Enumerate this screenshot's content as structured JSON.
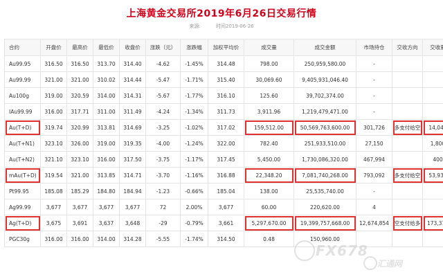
{
  "title": "上海黄金交易所2019年6月26日交易行情",
  "meta": {
    "source": "来源:",
    "time": "时间2019-06-26"
  },
  "headers": [
    "合约",
    "开盘价",
    "最高价",
    "最低价",
    "收盘价",
    "涨跌（元）",
    "涨跌幅",
    "加权平均价",
    "成交量",
    "成交金额",
    "市场持仓",
    "交收方向",
    "交收量"
  ],
  "rows": [
    [
      "Au99.95",
      "316.50",
      "316.50",
      "313.70",
      "314.40",
      "-4.62",
      "-1.45%",
      "314.48",
      "798.00",
      "250,959,580.00",
      "-",
      "",
      ""
    ],
    [
      "Au99.99",
      "321.00",
      "321.00",
      "310.02",
      "314.44",
      "-5.47",
      "-1.71%",
      "315.40",
      "30,069.60",
      "9,405,931,046.40",
      "-",
      "",
      ""
    ],
    [
      "Au100g",
      "319.00",
      "320.59",
      "314.00",
      "314.31",
      "-5.67",
      "-1.77%",
      "316.10",
      "125.60",
      "39,702,374.00",
      "-",
      "",
      ""
    ],
    [
      "IAu99.99",
      "316.00",
      "317.71",
      "311.00",
      "311.49",
      "-4.24",
      "-1.34%",
      "311.73",
      "3,911.96",
      "1,219,479,471.00",
      "-",
      "",
      ""
    ],
    [
      "Au(T+D)",
      "319.74",
      "320.99",
      "313.81",
      "314.69",
      "-3.25",
      "-1.02%",
      "317.02",
      "159,512.00",
      "50,569,763,600.00",
      "301,726",
      "多支付给空",
      "14,048"
    ],
    [
      "Au(T+N1)",
      "323.10",
      "326.00",
      "319.00",
      "319.35",
      "-4.00",
      "-1.24%",
      "322.00",
      "782.40",
      "251,933,510.00",
      "27,150",
      "",
      "1,800"
    ],
    [
      "Au(T+N2)",
      "321.10",
      "323.10",
      "316.00",
      "317.50",
      "-3.75",
      "-1.17%",
      "317.45",
      "5,450.00",
      "1,730,086,320.00",
      "467,994",
      "",
      "400"
    ],
    [
      "mAu(T+D)",
      "319.54",
      "321.00",
      "313.85",
      "314.71",
      "-3.70",
      "-1.16%",
      "316.88",
      "22,348.20",
      "7,081,740,268.00",
      "793,092",
      "多支付给空",
      "53,932"
    ],
    [
      "Pt99.95",
      "185.08",
      "185.29",
      "184.80",
      "184.94",
      "-1.23",
      "-0.66%",
      "185.04",
      "138.00",
      "25,535,740.00",
      "-",
      "",
      ""
    ],
    [
      "Ag99.99",
      "3,677",
      "3,677",
      "3,677",
      "3,677",
      "72",
      "2.00%",
      "3,677",
      "60.00",
      "220,620.00",
      "4",
      "",
      ""
    ],
    [
      "Ag(T+D)",
      "3,675",
      "3,691",
      "3,637",
      "3,648",
      "-29",
      "-0.79%",
      "3,661",
      "5,297,670.00",
      "19,399,757,668.00",
      "12,674,854",
      "空支付给多",
      "173,310"
    ],
    [
      "PGC30g",
      "316.00",
      "316.00",
      "314.00",
      "314.28",
      "-5.55",
      "-1.74%",
      "314.50",
      "0.48",
      "150,960.00",
      "",
      "",
      ""
    ]
  ],
  "highlight": {
    "0": [],
    "1": [],
    "2": [],
    "3": [],
    "4": [
      0,
      8,
      9,
      11,
      12
    ],
    "5": [],
    "6": [],
    "7": [
      0,
      8,
      9,
      11,
      12
    ],
    "8": [],
    "9": [],
    "10": [
      0,
      8,
      9,
      11,
      12
    ],
    "11": []
  },
  "watermark": {
    "main": "FX678",
    "sub": "汇通网"
  },
  "colors": {
    "title": "#d0021b",
    "highlight": "#e03030"
  }
}
